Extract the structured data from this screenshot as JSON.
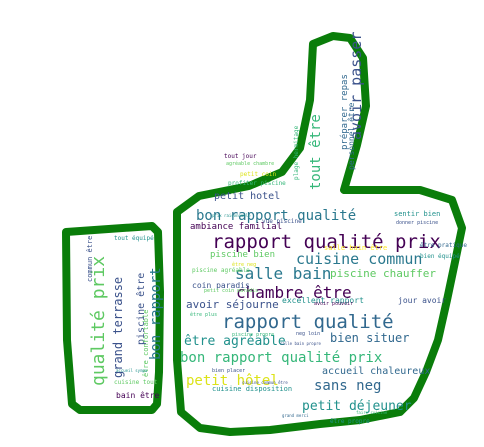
{
  "outline_color": "#0a7d0a",
  "palette": [
    "#440154",
    "#3b528b",
    "#21918c",
    "#5ec962",
    "#fde725"
  ],
  "words": [
    {
      "text": "rapport qualité prix",
      "c": "#440154"
    },
    {
      "text": "rapport qualité",
      "c": "#31688e"
    },
    {
      "text": "bon rapport qualité prix",
      "c": "#35b779"
    },
    {
      "text": "bon rapport qualité",
      "c": "#2a788e"
    },
    {
      "text": "cuisine commun",
      "c": "#2a788e"
    },
    {
      "text": "salle bain",
      "c": "#2a788e"
    },
    {
      "text": "chambre être",
      "c": "#440154"
    },
    {
      "text": "qualité prix",
      "c": "#5ec962"
    },
    {
      "text": "bon rapport",
      "c": "#2a788e"
    },
    {
      "text": "grand terrasse",
      "c": "#3b528b"
    },
    {
      "text": "avoir passer",
      "c": "#3b528b"
    },
    {
      "text": "tout être",
      "c": "#35b779"
    },
    {
      "text": "petit hôtel",
      "c": "#dce319"
    },
    {
      "text": "sans neg",
      "c": "#31688e"
    },
    {
      "text": "petit déjeuner",
      "c": "#21918c"
    },
    {
      "text": "être agréable",
      "c": "#21918c"
    },
    {
      "text": "bien situer",
      "c": "#31688e"
    },
    {
      "text": "avoir séjourne",
      "c": "#3b528b"
    },
    {
      "text": "piscine chauffer",
      "c": "#5ec962"
    },
    {
      "text": "accueil chaleureux",
      "c": "#31688e"
    },
    {
      "text": "préparer repas",
      "c": "#31688e"
    },
    {
      "text": "piscine être",
      "c": "#3b528b"
    },
    {
      "text": "ambiance familial",
      "c": "#440154"
    },
    {
      "text": "piscine bien",
      "c": "#5ec962"
    },
    {
      "text": "petit hotel",
      "c": "#3b528b"
    },
    {
      "text": "coin paradis",
      "c": "#3b528b"
    },
    {
      "text": "être confortable",
      "c": "#5ec962"
    },
    {
      "text": "excellent rapport",
      "c": "#21918c"
    },
    {
      "text": "jour avoir",
      "c": "#3b528b"
    },
    {
      "text": "personnel être",
      "c": "#31688e"
    },
    {
      "text": "sentir bien",
      "c": "#21918c"
    },
    {
      "text": "salle bain être",
      "c": "#fde725"
    },
    {
      "text": "être pratique",
      "c": "#31688e"
    },
    {
      "text": "bien équipé",
      "c": "#21918c"
    },
    {
      "text": "commun être",
      "c": "#3b528b"
    },
    {
      "text": "tout équipé",
      "c": "#21918c"
    },
    {
      "text": "piscine agréable",
      "c": "#5ec962"
    },
    {
      "text": "bain être",
      "c": "#440154"
    },
    {
      "text": "cuisine tout",
      "c": "#5ec962"
    },
    {
      "text": "cuisine disposition",
      "c": "#21918c"
    },
    {
      "text": "être propre",
      "c": "#21918c"
    },
    {
      "text": "neg loin",
      "c": "#3b528b"
    },
    {
      "text": "vue piscine",
      "c": "#3b528b"
    },
    {
      "text": "tout jour",
      "c": "#440154"
    },
    {
      "text": "petit coin",
      "c": "#dce319"
    },
    {
      "text": "profiter piscine",
      "c": "#35b779"
    },
    {
      "text": "plage hermitage",
      "c": "#35b779"
    },
    {
      "text": "être neg",
      "c": "#dce319"
    },
    {
      "text": "donner piscine",
      "c": "#3b528b"
    },
    {
      "text": "petit coin paradis",
      "c": "#5ec962"
    },
    {
      "text": "cuisine commun être",
      "c": "#3b528b"
    },
    {
      "text": "salle bain propre",
      "c": "#3b528b"
    },
    {
      "text": "accueil sympa",
      "c": "#21918c"
    },
    {
      "text": "agréable chambre",
      "c": "#5ec962"
    },
    {
      "text": "piscine propre",
      "c": "#35b779"
    },
    {
      "text": "prix raisonnable",
      "c": "#21918c"
    },
    {
      "text": "être plus",
      "c": "#35b779"
    },
    {
      "text": "avoir pouvoir",
      "c": "#440154"
    },
    {
      "text": "bien placer",
      "c": "#3b528b"
    },
    {
      "text": "grand merci",
      "c": "#31688e"
    },
    {
      "text": "faire cuisine",
      "c": "#35b779"
    }
  ]
}
